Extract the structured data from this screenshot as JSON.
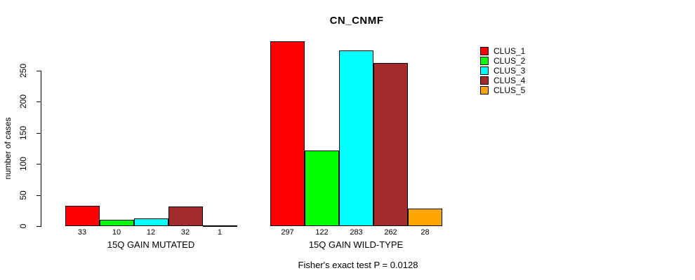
{
  "chart_data": {
    "type": "bar",
    "title": "CN_CNMF",
    "xlabel": "",
    "ylabel": "number of cases",
    "ylim": [
      0,
      250
    ],
    "yticks": [
      0,
      50,
      100,
      150,
      200,
      250
    ],
    "grid": false,
    "legend_position": "right",
    "categories": [
      "15Q GAIN MUTATED",
      "15Q GAIN WILD-TYPE"
    ],
    "series": [
      {
        "name": "CLUS_1",
        "color": "#FF0000",
        "values": [
          33,
          297
        ]
      },
      {
        "name": "CLUS_2",
        "color": "#00FF00",
        "values": [
          10,
          122
        ]
      },
      {
        "name": "CLUS_3",
        "color": "#00FFFF",
        "values": [
          12,
          283
        ]
      },
      {
        "name": "CLUS_4",
        "color": "#A52A2A",
        "values": [
          32,
          262
        ]
      },
      {
        "name": "CLUS_5",
        "color": "#FFA500",
        "values": [
          1,
          28
        ]
      }
    ],
    "bar_value_labels": [
      [
        33,
        10,
        12,
        32,
        1
      ],
      [
        297,
        122,
        283,
        262,
        28
      ]
    ],
    "annotation": "Fisher's exact test P = 0.0128",
    "axis_color": "#000000"
  }
}
